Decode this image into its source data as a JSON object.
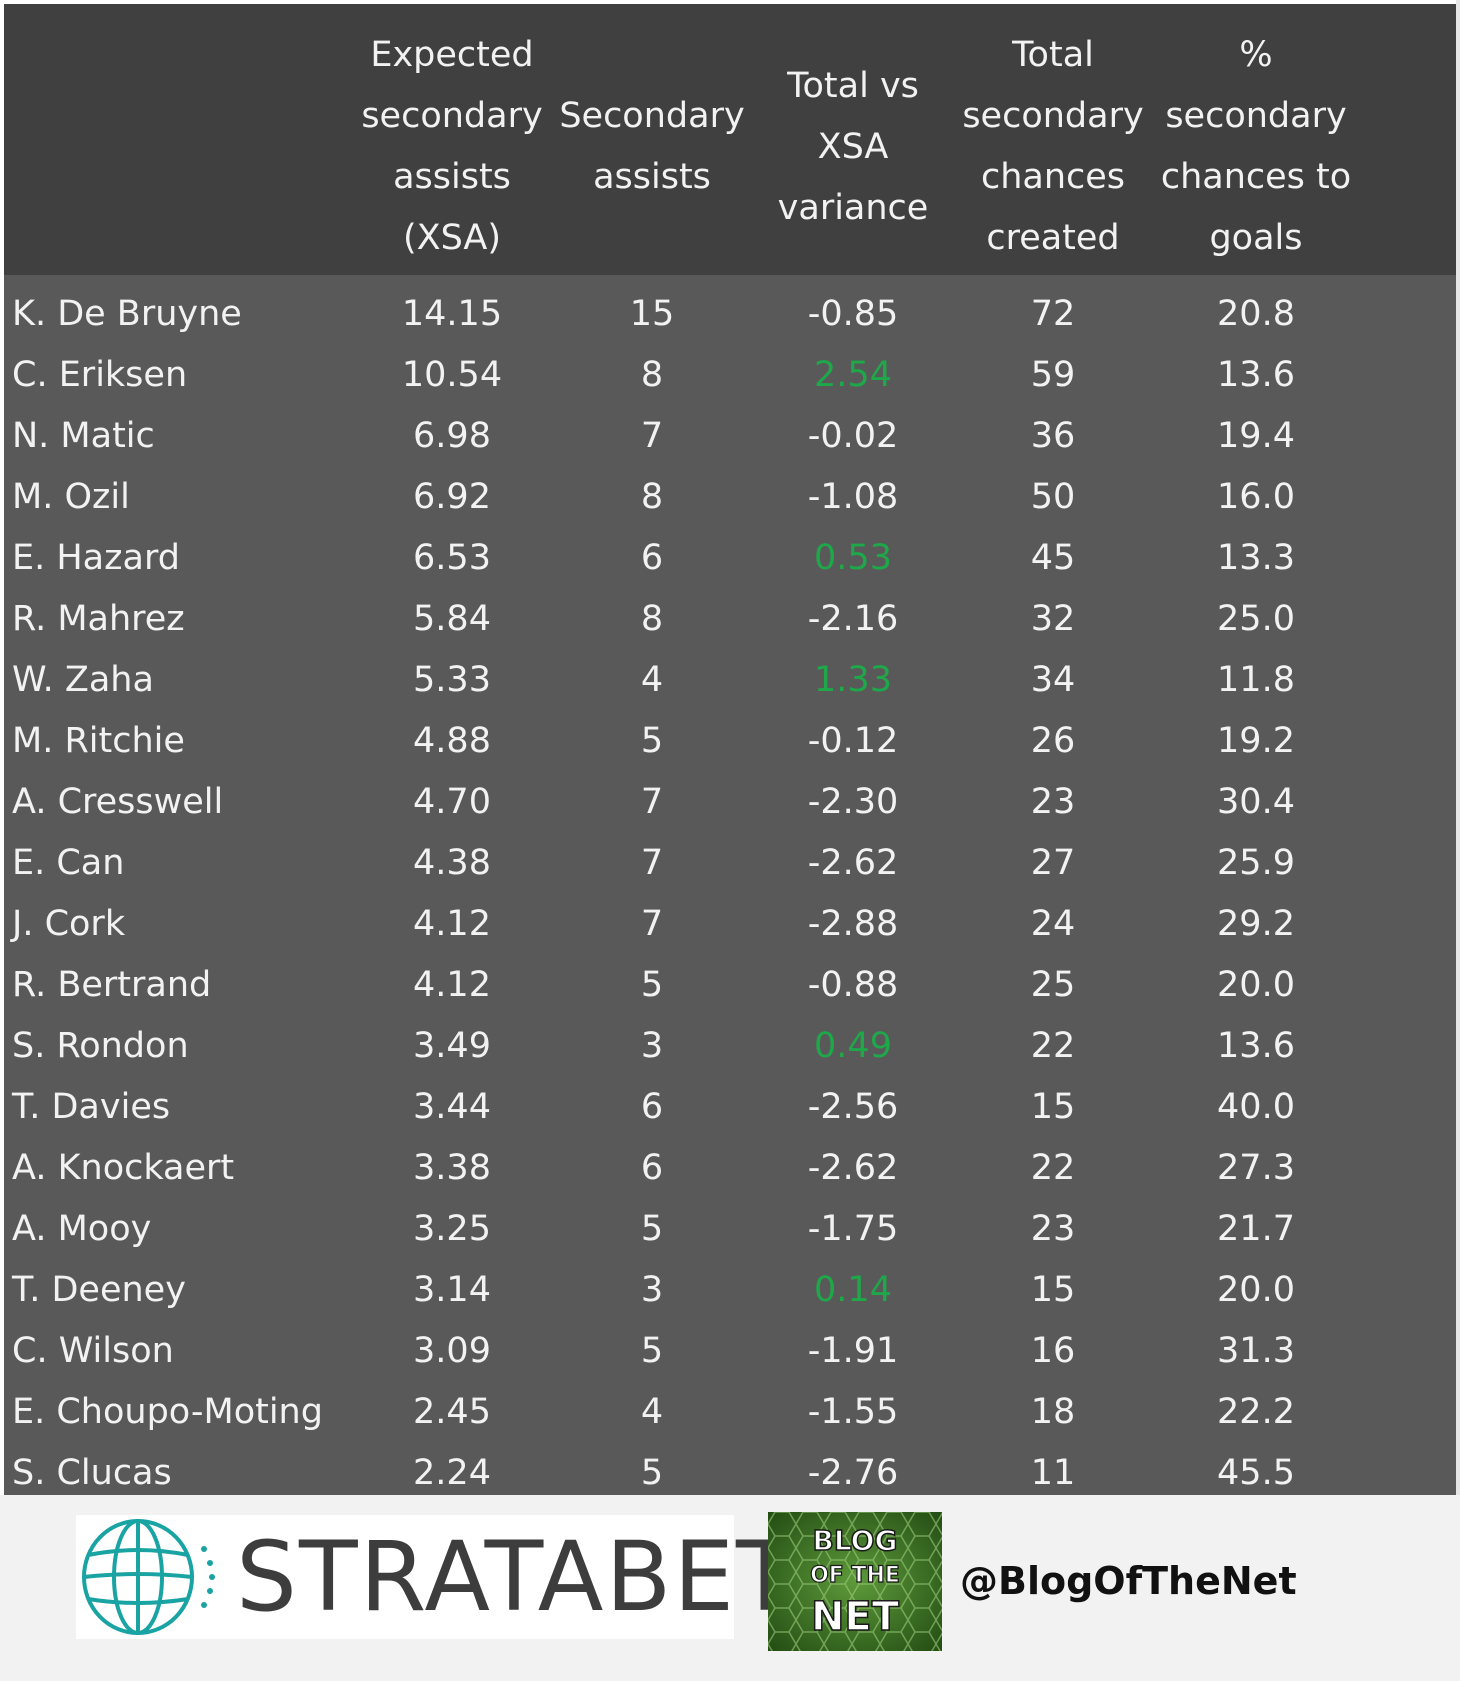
{
  "chart_data": {
    "type": "table",
    "columns": [
      "",
      "Expected\nsecondary\nassists\n(XSA)",
      "Secondary\nassists",
      "Total vs\nXSA\nvariance",
      "Total\nsecondary\nchances\ncreated",
      "%\nsecondary\nchances to\ngoals"
    ],
    "rows": [
      {
        "player": "K. De Bruyne",
        "xsa": "14.15",
        "sa": "15",
        "variance": "-0.85",
        "chances": "72",
        "pct": "20.8"
      },
      {
        "player": "C. Eriksen",
        "xsa": "10.54",
        "sa": "8",
        "variance": "2.54",
        "chances": "59",
        "pct": "13.6"
      },
      {
        "player": "N. Matic",
        "xsa": "6.98",
        "sa": "7",
        "variance": "-0.02",
        "chances": "36",
        "pct": "19.4"
      },
      {
        "player": "M. Ozil",
        "xsa": "6.92",
        "sa": "8",
        "variance": "-1.08",
        "chances": "50",
        "pct": "16.0"
      },
      {
        "player": "E. Hazard",
        "xsa": "6.53",
        "sa": "6",
        "variance": "0.53",
        "chances": "45",
        "pct": "13.3"
      },
      {
        "player": "R. Mahrez",
        "xsa": "5.84",
        "sa": "8",
        "variance": "-2.16",
        "chances": "32",
        "pct": "25.0"
      },
      {
        "player": "W. Zaha",
        "xsa": "5.33",
        "sa": "4",
        "variance": "1.33",
        "chances": "34",
        "pct": "11.8"
      },
      {
        "player": "M. Ritchie",
        "xsa": "4.88",
        "sa": "5",
        "variance": "-0.12",
        "chances": "26",
        "pct": "19.2"
      },
      {
        "player": "A. Cresswell",
        "xsa": "4.70",
        "sa": "7",
        "variance": "-2.30",
        "chances": "23",
        "pct": "30.4"
      },
      {
        "player": "E. Can",
        "xsa": "4.38",
        "sa": "7",
        "variance": "-2.62",
        "chances": "27",
        "pct": "25.9"
      },
      {
        "player": "J. Cork",
        "xsa": "4.12",
        "sa": "7",
        "variance": "-2.88",
        "chances": "24",
        "pct": "29.2"
      },
      {
        "player": "R. Bertrand",
        "xsa": "4.12",
        "sa": "5",
        "variance": "-0.88",
        "chances": "25",
        "pct": "20.0"
      },
      {
        "player": "S. Rondon",
        "xsa": "3.49",
        "sa": "3",
        "variance": "0.49",
        "chances": "22",
        "pct": "13.6"
      },
      {
        "player": "T. Davies",
        "xsa": "3.44",
        "sa": "6",
        "variance": "-2.56",
        "chances": "15",
        "pct": "40.0"
      },
      {
        "player": "A. Knockaert",
        "xsa": "3.38",
        "sa": "6",
        "variance": "-2.62",
        "chances": "22",
        "pct": "27.3"
      },
      {
        "player": "A. Mooy",
        "xsa": "3.25",
        "sa": "5",
        "variance": "-1.75",
        "chances": "23",
        "pct": "21.7"
      },
      {
        "player": "T. Deeney",
        "xsa": "3.14",
        "sa": "3",
        "variance": "0.14",
        "chances": "15",
        "pct": "20.0"
      },
      {
        "player": "C. Wilson",
        "xsa": "3.09",
        "sa": "5",
        "variance": "-1.91",
        "chances": "16",
        "pct": "31.3"
      },
      {
        "player": "E. Choupo-Moting",
        "xsa": "2.45",
        "sa": "4",
        "variance": "-1.55",
        "chances": "18",
        "pct": "22.2"
      },
      {
        "player": "S. Clucas",
        "xsa": "2.24",
        "sa": "5",
        "variance": "-2.76",
        "chances": "11",
        "pct": "45.5"
      }
    ],
    "colors": {
      "header_bg": "#404040",
      "body_bg": "#595959",
      "text": "#f2f2f2",
      "positive_variance": "#1ea84a"
    }
  },
  "footer": {
    "stratabet_logo_text": "STRATABET",
    "blog_logo_lines": [
      "BLOG",
      "OF THE",
      "NET"
    ],
    "handle": "@BlogOfTheNet",
    "logo_colors": {
      "globe": "#1aa3a3",
      "blog_green": "#2f6b1f"
    }
  }
}
